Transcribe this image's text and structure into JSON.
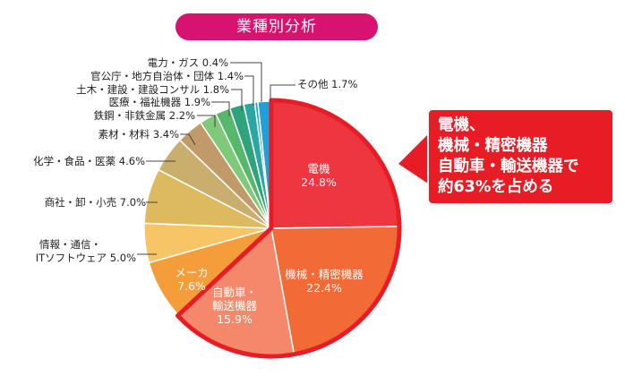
{
  "title": "業種別分析",
  "chart_data": {
    "type": "pie",
    "title": "業種別分析",
    "unit": "%",
    "slices": [
      {
        "label": "電機",
        "value": 24.8,
        "color": "#ee3640",
        "inside": true
      },
      {
        "label": "機械・精密機器",
        "value": 22.4,
        "color": "#f26a35",
        "inside": true
      },
      {
        "label": "自動車・輸送機器",
        "value": 15.9,
        "color": "#f5876b",
        "inside": true
      },
      {
        "label": "メーカ",
        "value": 7.6,
        "color": "#f59c3b",
        "inside": true
      },
      {
        "label": "情報・通信・ITソフトウェア",
        "value": 5.0,
        "color": "#f8c566",
        "inside": false
      },
      {
        "label": "商社・卸・小売",
        "value": 7.0,
        "color": "#ddb960",
        "inside": false
      },
      {
        "label": "化学・食品・医薬",
        "value": 4.6,
        "color": "#c9ae6e",
        "inside": false
      },
      {
        "label": "素材・材料",
        "value": 3.4,
        "color": "#c09a68",
        "inside": false
      },
      {
        "label": "鉄鋼・非鉄金属",
        "value": 2.2,
        "color": "#7ec97a",
        "inside": false
      },
      {
        "label": "医療・福祉機器",
        "value": 1.9,
        "color": "#55b86a",
        "inside": false
      },
      {
        "label": "土木・建設・建設コンサル",
        "value": 1.8,
        "color": "#2fa37c",
        "inside": false
      },
      {
        "label": "官公庁・地方自治体・団体",
        "value": 1.4,
        "color": "#2aa6a3",
        "inside": false
      },
      {
        "label": "電力・ガス",
        "value": 0.4,
        "color": "#22a5c6",
        "inside": false
      },
      {
        "label": "その他",
        "value": 1.7,
        "color": "#21a0d8",
        "inside": false
      }
    ],
    "inside_labels": {
      "s0": [
        "電機",
        "24.8%"
      ],
      "s1": [
        "機械・精密機器",
        "22.4%"
      ],
      "s2": [
        "自動車・",
        "輸送機器",
        "15.9%"
      ],
      "s3": [
        "メーカ",
        "7.6%"
      ]
    },
    "outside_labels": {
      "s4": [
        "情報・通信・",
        "ITソフトウェア 5.0%"
      ],
      "s5": [
        "商社・卸・小売 7.0%"
      ],
      "s6": [
        "化学・食品・医薬 4.6%"
      ],
      "s7": [
        "素材・材料 3.4%"
      ],
      "s8": [
        "鉄鋼・非鉄金属 2.2%"
      ],
      "s9": [
        "医療・福祉機器 1.9%"
      ],
      "s10": [
        "土木・建設・建設コンサル 1.8%"
      ],
      "s11": [
        "官公庁・地方自治体・団体 1.4%"
      ],
      "s12": [
        "電力・ガス 0.4%"
      ],
      "s13": [
        "その他 1.7%"
      ]
    },
    "highlighted_slices": [
      "電機",
      "機械・精密機器",
      "自動車・輸送機器"
    ],
    "highlight_color": "#e81c25"
  },
  "callout": {
    "text": "電機、\n機械・精密機器\n自動車・輸送機器で\n約63%を占める"
  }
}
